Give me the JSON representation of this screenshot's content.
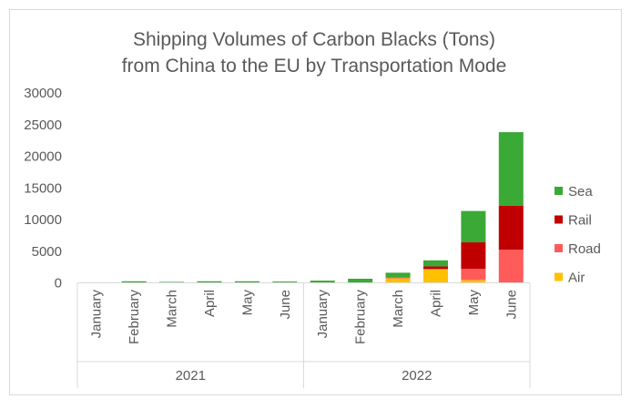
{
  "chart_data": {
    "type": "bar",
    "stacked": true,
    "title": "Shipping Volumes of Carbon Blacks (Tons) from China to the EU by Transportation Mode",
    "title_lines": [
      "Shipping Volumes of Carbon Blacks (Tons)",
      "from China to the EU by Transportation Mode"
    ],
    "categories": [
      "January",
      "February",
      "March",
      "April",
      "May",
      "June",
      "January",
      "February",
      "March",
      "April",
      "May",
      "June"
    ],
    "groups": [
      {
        "label": "2021",
        "count": 6
      },
      {
        "label": "2022",
        "count": 6
      }
    ],
    "ylim": [
      0,
      30000
    ],
    "yticks": [
      0,
      5000,
      10000,
      15000,
      20000,
      25000,
      30000
    ],
    "grid": false,
    "legend_position": "right",
    "series": [
      {
        "name": "Air",
        "color": "#ffc000",
        "values": [
          0,
          0,
          0,
          0,
          0,
          0,
          0,
          0,
          700,
          2100,
          450,
          0
        ]
      },
      {
        "name": "Road",
        "color": "#ff5b5b",
        "values": [
          0,
          0,
          0,
          0,
          0,
          0,
          0,
          0,
          150,
          100,
          1750,
          5250
        ]
      },
      {
        "name": "Rail",
        "color": "#c00000",
        "values": [
          0,
          0,
          0,
          0,
          0,
          0,
          0,
          0,
          0,
          400,
          4200,
          6950
        ]
      },
      {
        "name": "Sea",
        "color": "#3aa935",
        "values": [
          0,
          250,
          150,
          250,
          250,
          200,
          350,
          650,
          750,
          950,
          4950,
          11600
        ]
      }
    ]
  }
}
